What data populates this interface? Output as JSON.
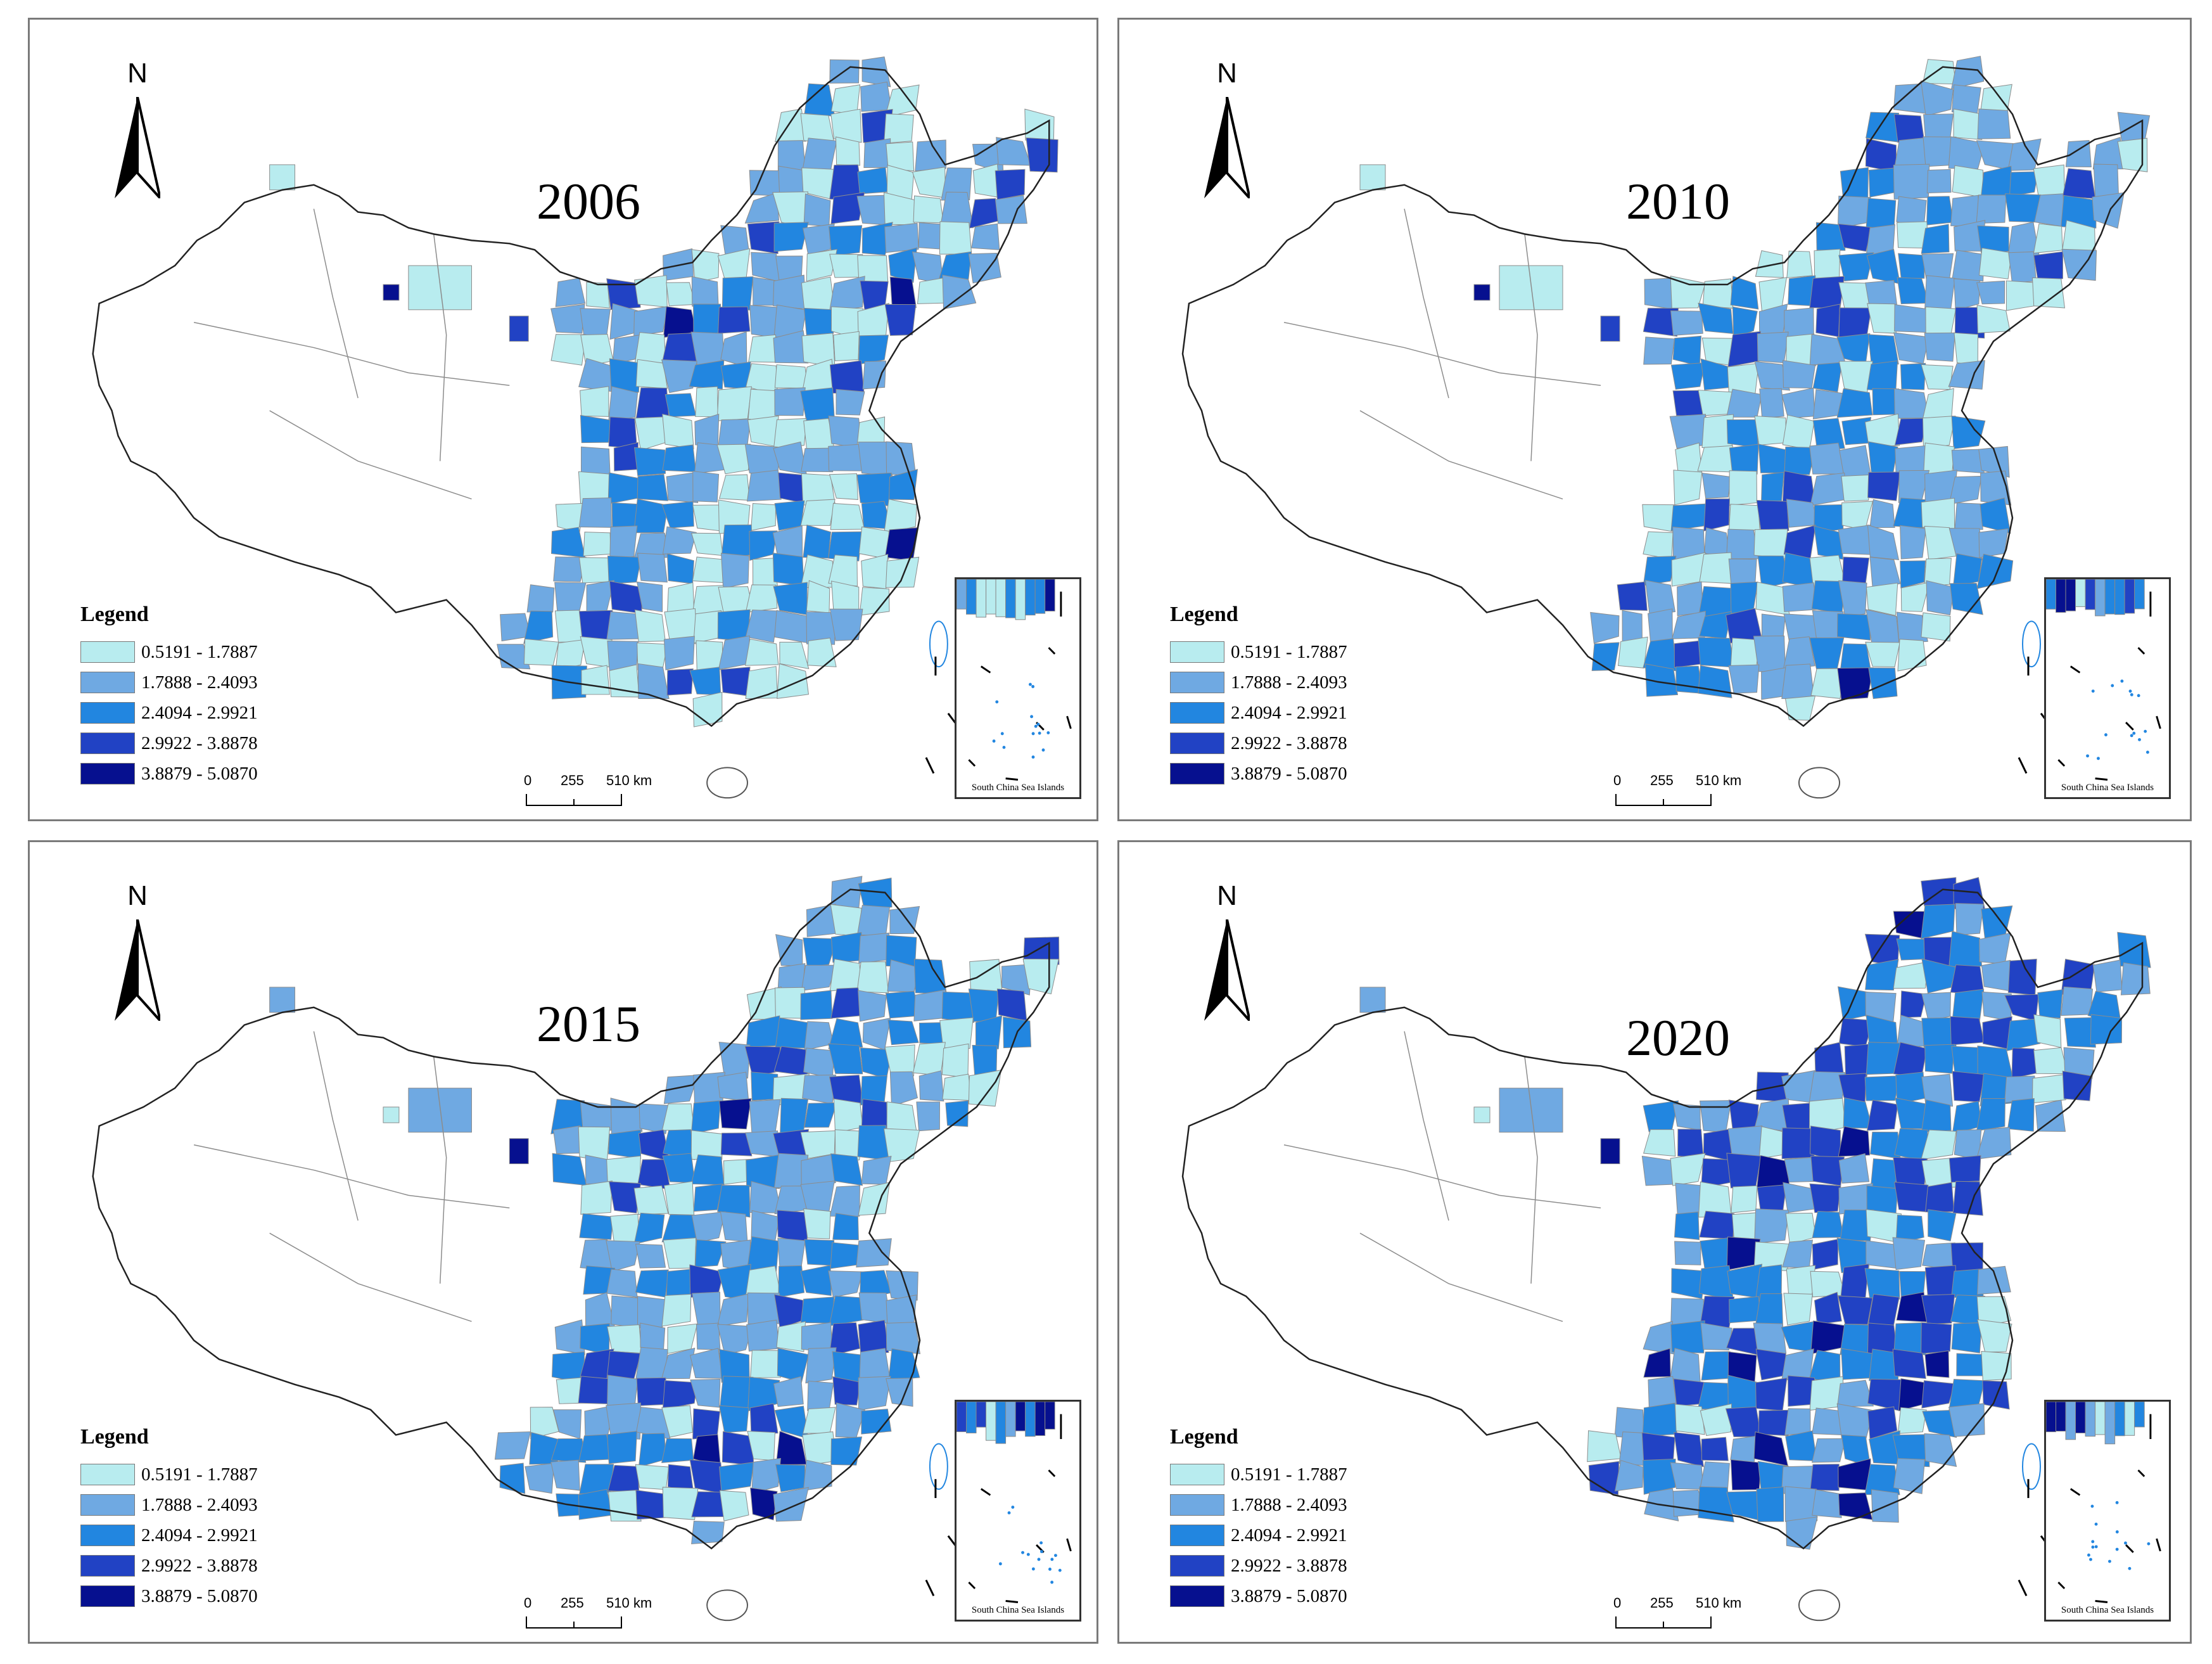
{
  "legend": {
    "title": "Legend",
    "classes": [
      {
        "label": "0.5191 - 1.7887",
        "color": "#b8ecef"
      },
      {
        "label": "1.7888 - 2.4093",
        "color": "#6fa9e2"
      },
      {
        "label": "2.4094 - 2.9921",
        "color": "#2286e0"
      },
      {
        "label": "2.9922 - 3.8878",
        "color": "#2142c4"
      },
      {
        "label": "3.8879 - 5.0870",
        "color": "#06108f"
      }
    ]
  },
  "north_label": "N",
  "scale_bar": {
    "ticks": [
      "0",
      "255",
      "510 km"
    ]
  },
  "inset_label": "South China Sea Islands",
  "panels": [
    {
      "year": "2006"
    },
    {
      "year": "2010"
    },
    {
      "year": "2015"
    },
    {
      "year": "2020"
    }
  ],
  "region_colors": [
    "#ffffff",
    "#b8ecef",
    "#6fa9e2",
    "#2286e0",
    "#2142c4",
    "#06108f"
  ]
}
